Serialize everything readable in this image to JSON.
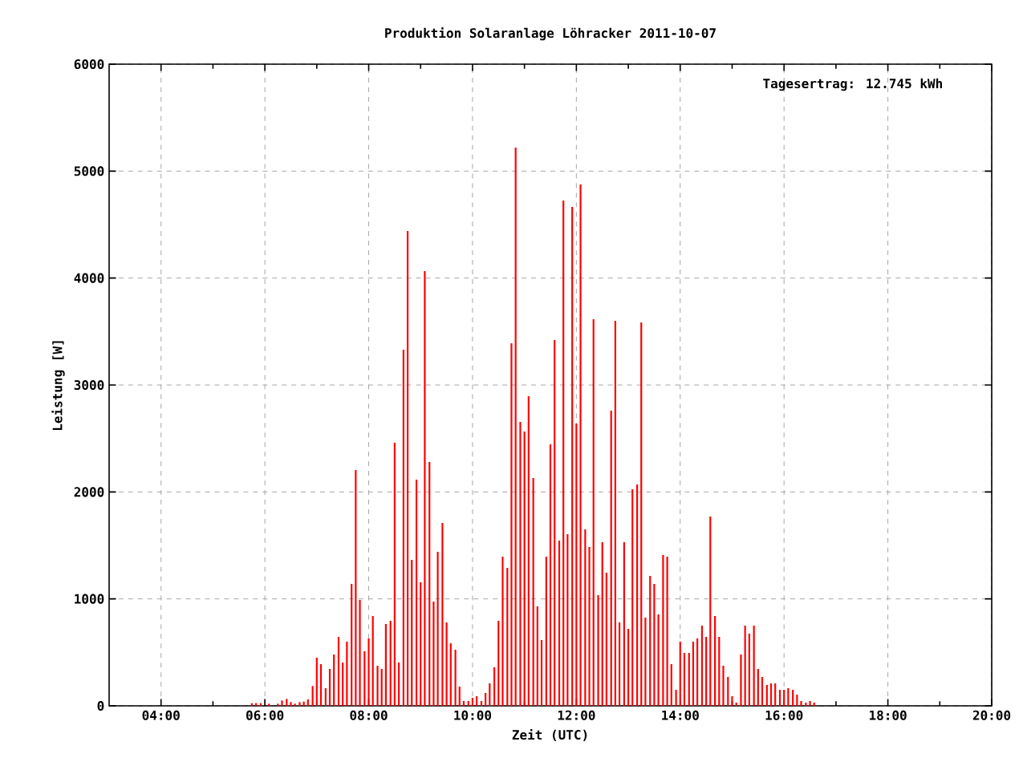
{
  "chart_data": {
    "type": "bar",
    "title": "Produktion Solaranlage Löhracker 2011-10-07",
    "xlabel": "Zeit (UTC)",
    "ylabel": "Leistung [W]",
    "annotations": [
      "Tagesertrag: 12.745 kWh"
    ],
    "color": "#ff0000",
    "x": [
      5.75,
      5.83,
      5.92,
      6,
      6.08,
      6.17,
      6.25,
      6.33,
      6.42,
      6.5,
      6.58,
      6.67,
      6.75,
      6.83,
      6.92,
      7,
      7.08,
      7.17,
      7.25,
      7.33,
      7.42,
      7.5,
      7.58,
      7.67,
      7.75,
      7.83,
      7.92,
      8,
      8.08,
      8.17,
      8.25,
      8.33,
      8.42,
      8.5,
      8.58,
      8.67,
      8.75,
      8.83,
      8.92,
      9,
      9.08,
      9.17,
      9.25,
      9.33,
      9.42,
      9.5,
      9.58,
      9.67,
      9.75,
      9.83,
      9.92,
      10,
      10.08,
      10.17,
      10.25,
      10.33,
      10.42,
      10.5,
      10.58,
      10.67,
      10.75,
      10.83,
      10.92,
      11,
      11.08,
      11.17,
      11.25,
      11.33,
      11.42,
      11.5,
      11.58,
      11.67,
      11.75,
      11.83,
      11.92,
      12,
      12.08,
      12.17,
      12.25,
      12.33,
      12.42,
      12.5,
      12.58,
      12.67,
      12.75,
      12.83,
      12.92,
      13,
      13.08,
      13.17,
      13.25,
      13.33,
      13.42,
      13.5,
      13.58,
      13.67,
      13.75,
      13.83,
      13.92,
      14,
      14.08,
      14.17,
      14.25,
      14.33,
      14.42,
      14.5,
      14.58,
      14.67,
      14.75,
      14.83,
      14.92,
      15,
      15.08,
      15.17,
      15.25,
      15.33,
      15.42,
      15.5,
      15.58,
      15.67,
      15.75,
      15.83,
      15.92,
      16,
      16.08,
      16.17,
      16.25,
      16.33,
      16.42,
      16.5,
      16.58
    ],
    "values": [
      25,
      25,
      25,
      null,
      20,
      null,
      20,
      50,
      65,
      35,
      20,
      35,
      40,
      60,
      185,
      450,
      390,
      165,
      345,
      480,
      645,
      405,
      600,
      1140,
      2205,
      990,
      510,
      630,
      840,
      375,
      345,
      765,
      795,
      2460,
      405,
      3330,
      4440,
      1365,
      2115,
      1155,
      4065,
      2280,
      975,
      1440,
      1710,
      780,
      585,
      525,
      180,
      45,
      45,
      75,
      90,
      45,
      120,
      210,
      360,
      795,
      1395,
      1290,
      3390,
      5220,
      2655,
      2565,
      2895,
      2130,
      930,
      615,
      1395,
      2445,
      3420,
      1545,
      4725,
      1605,
      4665,
      2640,
      4875,
      1650,
      1485,
      3615,
      1035,
      1530,
      1245,
      2760,
      3600,
      780,
      1530,
      720,
      2025,
      2070,
      3585,
      825,
      1215,
      1140,
      855,
      1410,
      1395,
      390,
      150,
      600,
      495,
      495,
      600,
      630,
      750,
      645,
      1770,
      840,
      645,
      375,
      270,
      90,
      30,
      480,
      750,
      675,
      750,
      345,
      270,
      195,
      210,
      210,
      150,
      150,
      165,
      150,
      105,
      45,
      30,
      45,
      30
    ],
    "xlim": [
      3,
      20
    ],
    "xticks": [
      {
        "value": 4,
        "label": "04:00"
      },
      {
        "value": 6,
        "label": "06:00"
      },
      {
        "value": 8,
        "label": "08:00"
      },
      {
        "value": 10,
        "label": "10:00"
      },
      {
        "value": 12,
        "label": "12:00"
      },
      {
        "value": 14,
        "label": "14:00"
      },
      {
        "value": 16,
        "label": "16:00"
      },
      {
        "value": 18,
        "label": "18:00"
      },
      {
        "value": 20,
        "label": "20:00"
      }
    ],
    "ylim": [
      0,
      6000
    ],
    "yticks": [
      0,
      1000,
      2000,
      3000,
      4000,
      5000,
      6000
    ],
    "grid": true
  }
}
